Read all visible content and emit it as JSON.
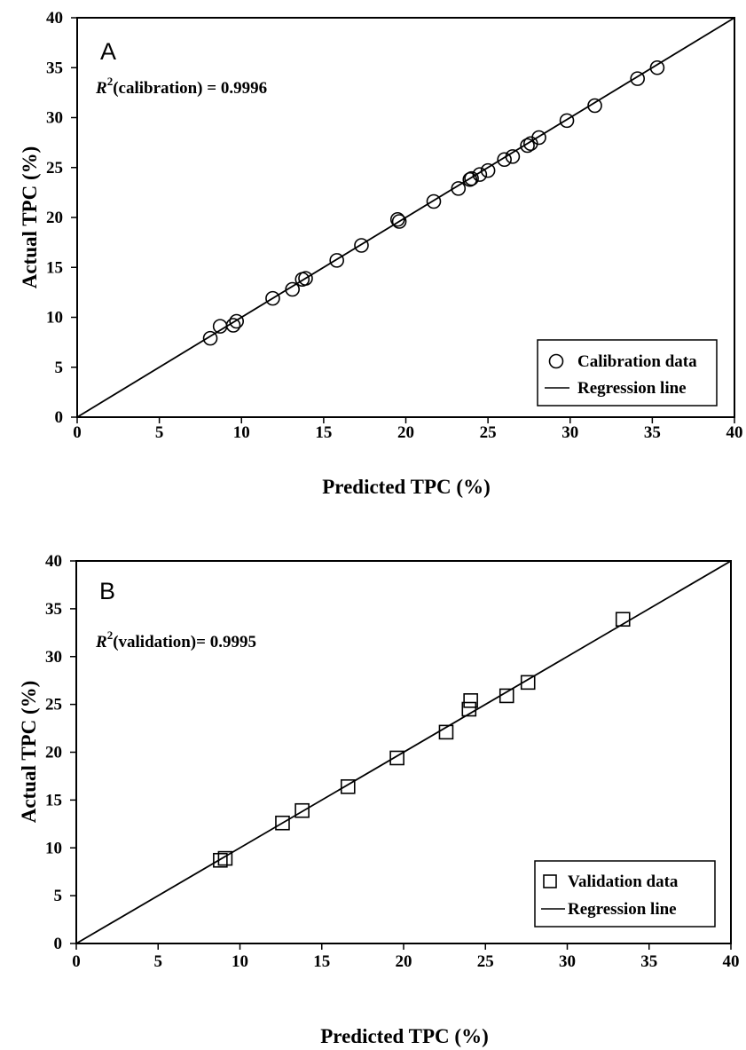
{
  "chart_data": [
    {
      "type": "scatter",
      "panel_label": "A",
      "annotation": "(calibration) = 0.9996",
      "annotation_var": "R",
      "annotation_sup": "2",
      "xlabel": "Predicted TPC (%)",
      "ylabel": "Actual TPC (%)",
      "xlim": [
        0,
        40
      ],
      "ylim": [
        0,
        40
      ],
      "x_ticks": [
        "0",
        "5",
        "10",
        "15",
        "20",
        "25",
        "30",
        "35",
        "40"
      ],
      "y_ticks": [
        "0",
        "5",
        "10",
        "15",
        "20",
        "25",
        "30",
        "35",
        "40"
      ],
      "grid": false,
      "legend_position": "bottom-right",
      "marker": "circle",
      "series": [
        {
          "name": "Calibration data",
          "x": [
            8.1,
            8.7,
            9.5,
            9.7,
            11.9,
            13.1,
            13.7,
            13.9,
            15.8,
            17.3,
            19.5,
            19.6,
            21.7,
            23.2,
            23.9,
            24.0,
            24.5,
            25.0,
            26.0,
            26.5,
            27.4,
            27.6,
            28.1,
            29.8,
            31.5,
            34.1,
            35.3
          ],
          "y": [
            7.9,
            9.1,
            9.2,
            9.6,
            11.9,
            12.8,
            13.8,
            13.9,
            15.7,
            17.2,
            19.8,
            19.6,
            21.6,
            22.9,
            23.8,
            23.9,
            24.3,
            24.7,
            25.8,
            26.1,
            27.2,
            27.4,
            28.0,
            29.7,
            31.2,
            33.9,
            35.0
          ]
        },
        {
          "name": "Regression line",
          "x": [
            0,
            40
          ],
          "y": [
            0,
            40
          ]
        }
      ]
    },
    {
      "type": "scatter",
      "panel_label": "B",
      "annotation": "(validation)= 0.9995",
      "annotation_var": "R",
      "annotation_sup": "2",
      "xlabel": "Predicted TPC (%)",
      "ylabel": "Actual TPC (%)",
      "xlim": [
        0,
        40
      ],
      "ylim": [
        0,
        40
      ],
      "x_ticks": [
        "0",
        "5",
        "10",
        "15",
        "20",
        "25",
        "30",
        "35",
        "40"
      ],
      "y_ticks": [
        "0",
        "5",
        "10",
        "15",
        "20",
        "25",
        "30",
        "35",
        "40"
      ],
      "grid": false,
      "legend_position": "bottom-right",
      "marker": "square",
      "series": [
        {
          "name": "Validation data",
          "x": [
            8.8,
            9.1,
            12.6,
            13.8,
            16.6,
            19.6,
            22.6,
            24.0,
            24.1,
            26.3,
            27.6,
            33.4
          ],
          "y": [
            8.7,
            8.9,
            12.6,
            13.9,
            16.4,
            19.4,
            22.1,
            24.5,
            25.4,
            25.9,
            27.3,
            33.9
          ]
        },
        {
          "name": "Regression line",
          "x": [
            0,
            40
          ],
          "y": [
            0,
            40
          ]
        }
      ]
    }
  ]
}
